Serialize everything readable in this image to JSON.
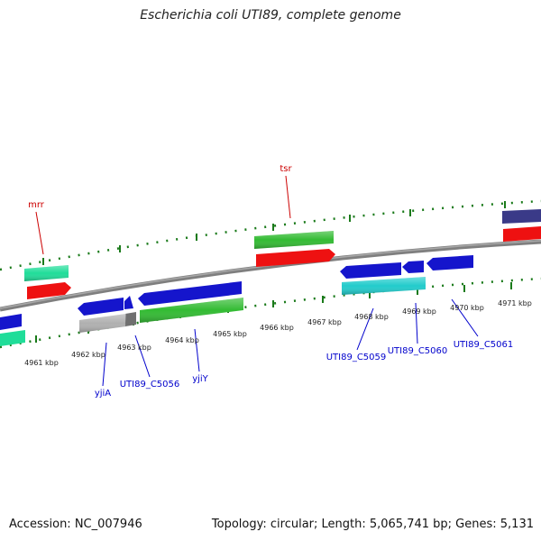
{
  "title": "Escherichia coli UTI89, complete genome",
  "footer": {
    "accession": "Accession: NC_007946",
    "summary": "Topology: circular; Length: 5,065,741 bp; Genes: 5,131"
  },
  "colors": {
    "backbone": "#7f7f7f",
    "tick": "#1a7a1a",
    "label_top": "#cc0000",
    "label_bottom": "#0000cc",
    "scale_text": "#222222",
    "red": "#ee1111",
    "blue": "#1515cc",
    "green": "#33bb33",
    "teal": "#20dd99",
    "cyan": "#22cccc",
    "gray": "#b0b0b0",
    "navy": "#3a3a88"
  },
  "scale": {
    "unit": "kbp",
    "labels": [
      "4961 kbp",
      "4962 kbp",
      "4963 kbp",
      "4964 kbp",
      "4965 kbp",
      "4966 kbp",
      "4967 kbp",
      "4968 kbp",
      "4969 kbp",
      "4970 kbp",
      "4971 kbp"
    ]
  },
  "gene_labels": {
    "top": [
      "mrr",
      "tsr"
    ],
    "bottom": [
      "yjiA",
      "UTI89_C5056",
      "yjiY",
      "UTI89_C5059",
      "UTI89_C5060",
      "UTI89_C5061"
    ]
  }
}
